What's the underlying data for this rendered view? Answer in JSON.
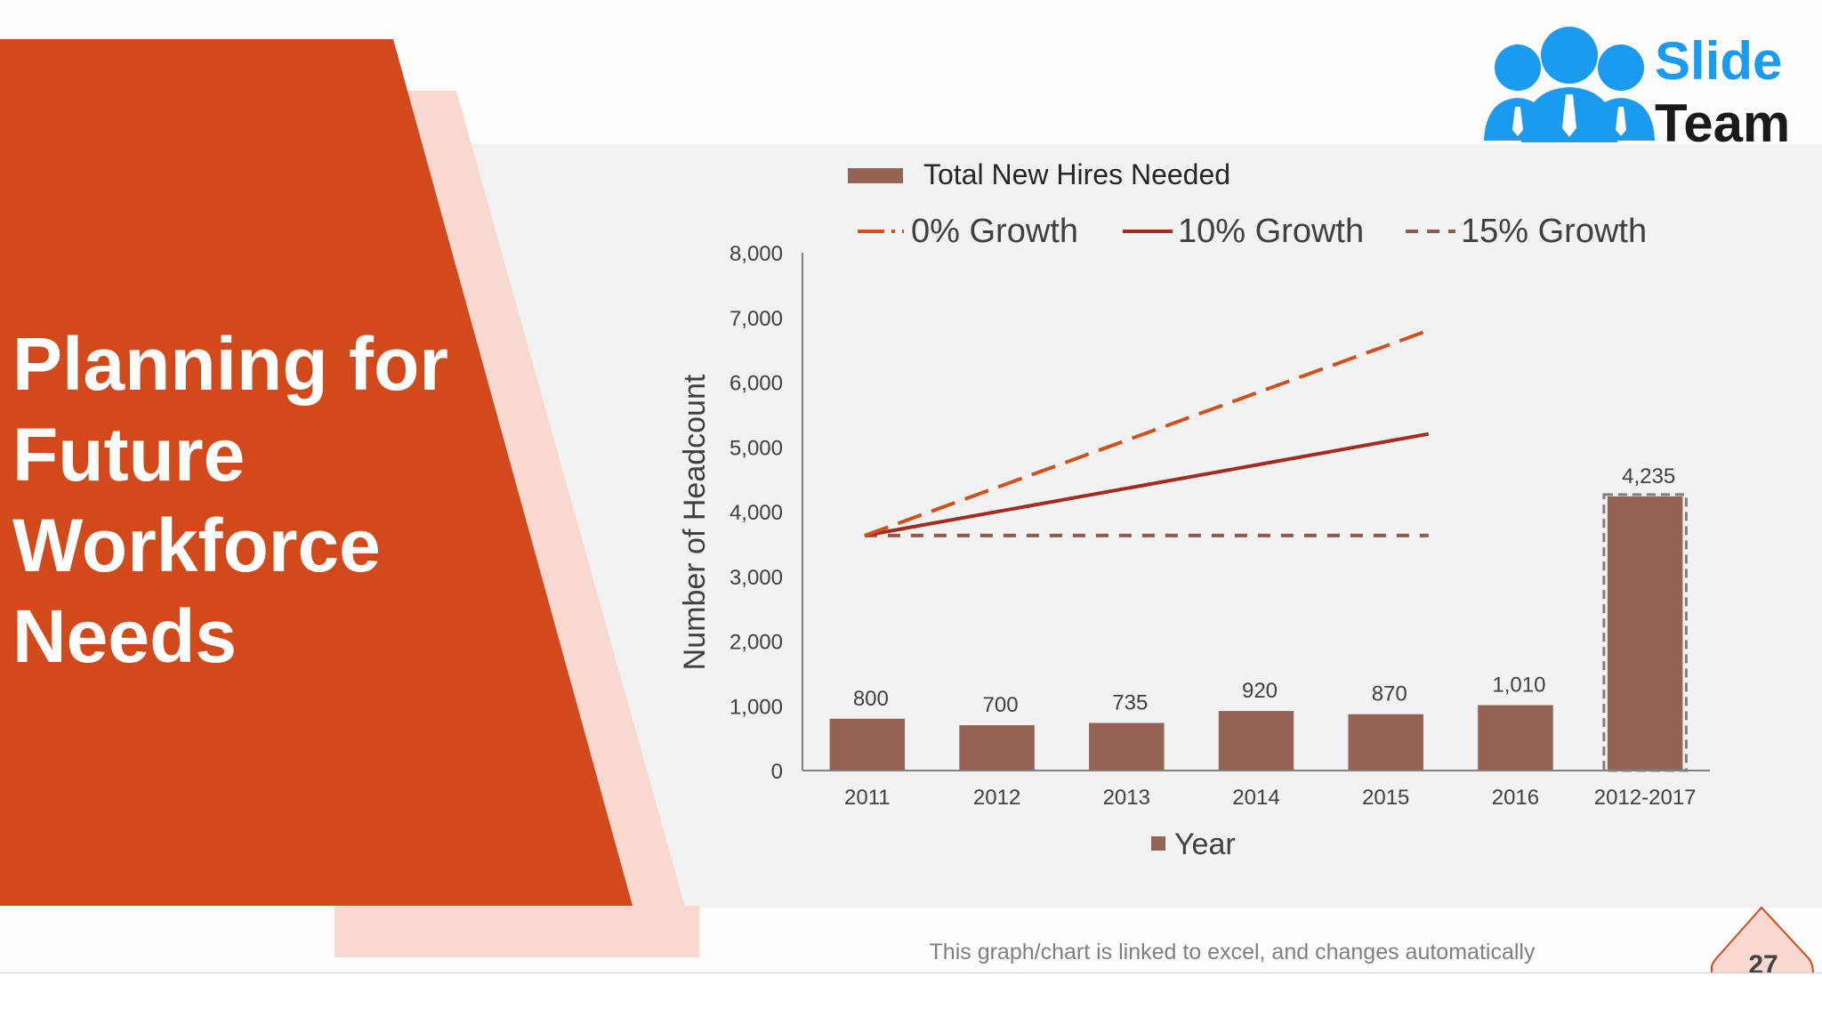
{
  "slide": {
    "title_lines": [
      "Planning for",
      "Future",
      "Workforce",
      "Needs"
    ],
    "logo_word_1": "Slide",
    "logo_word_2": "Team",
    "footer_note": "This graph/chart is linked to excel, and changes automatically",
    "page_number": "27",
    "colors": {
      "primary_orange": "#d24a1b",
      "light_pink": "#f9d9cf",
      "logo_blue": "#1a9bef",
      "bar_brown": "#956355",
      "line_dark_red": "#a52a1f",
      "line_orange": "#d2501c",
      "line_gray_brown": "#8c5a4e"
    }
  },
  "chart_data": {
    "type": "bar",
    "categories": [
      "2011",
      "2012",
      "2013",
      "2014",
      "2015",
      "2016",
      "2012-2017"
    ],
    "series": [
      {
        "name": "Total New Hires Needed",
        "type": "bar",
        "values": [
          800,
          700,
          735,
          920,
          870,
          1010,
          4235
        ]
      }
    ],
    "data_labels": [
      "800",
      "700",
      "735",
      "920",
      "870",
      "1,010",
      "4,235"
    ],
    "highlighted_category": "2012-2017",
    "lines": [
      {
        "name": "0% Growth",
        "style": "dashed",
        "color": "#8c5a4e",
        "x": [
          "2011",
          "2015"
        ],
        "y": [
          3630,
          3630
        ]
      },
      {
        "name": "10% Growth",
        "style": "solid",
        "color": "#a52a1f",
        "x": [
          "2011",
          "2015"
        ],
        "y": [
          3630,
          5200
        ]
      },
      {
        "name": "15% Growth",
        "style": "dashed",
        "color": "#d2501c",
        "x": [
          "2011",
          "2015"
        ],
        "y": [
          3630,
          6800
        ]
      }
    ],
    "legend_entries": [
      "Total New Hires Needed",
      "0% Growth",
      "10% Growth",
      "15% Growth"
    ],
    "legend_placement": "top",
    "ylabel": "Number of Headcount",
    "xlabel": "Year",
    "ylim": [
      0,
      8000
    ],
    "yticks": [
      0,
      1000,
      2000,
      3000,
      4000,
      5000,
      6000,
      7000,
      8000
    ],
    "ytick_labels": [
      "0",
      "1,000",
      "2,000",
      "3,000",
      "4,000",
      "5,000",
      "6,000",
      "7,000",
      "8,000"
    ],
    "grid": false
  }
}
